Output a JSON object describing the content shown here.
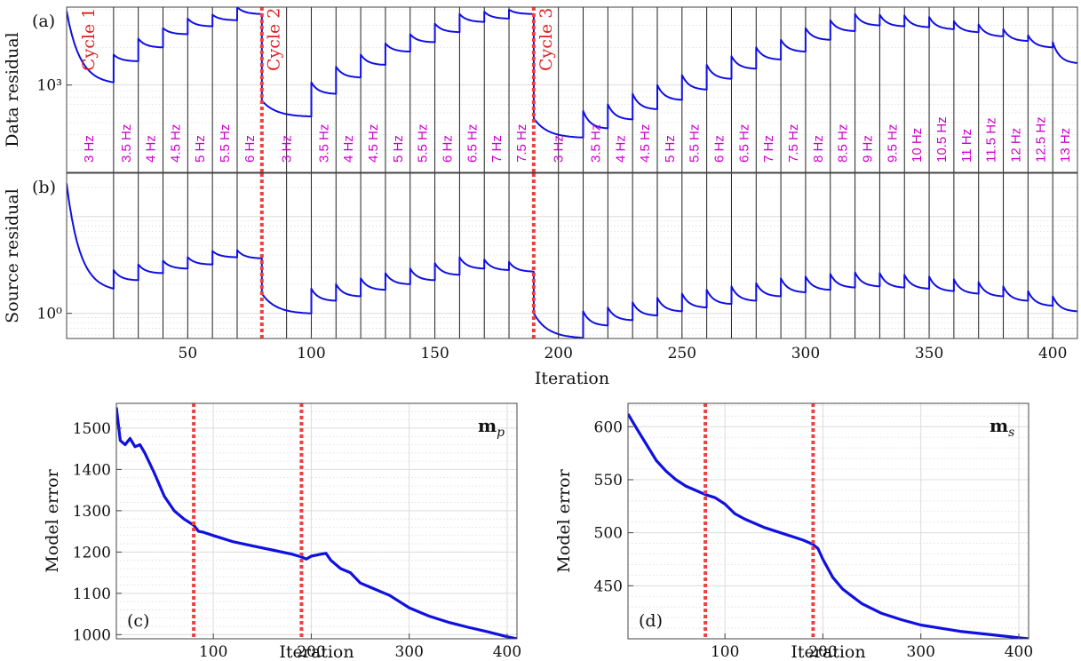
{
  "colors": {
    "line": "#1010e0",
    "cycle_marker": "#f04040",
    "freq_label": "#cc00cc",
    "cycle_label": "#e02020",
    "boundary": "#222222",
    "grid": "#dcdcdc",
    "axis": "#444444"
  },
  "chart_data": [
    {
      "id": "a",
      "panel_label": "(a)",
      "type": "line",
      "ylabel": "Data residual",
      "y_scale": "log",
      "yticks": [
        {
          "value": 1000,
          "label": "10³"
        }
      ],
      "ylim": [
        200,
        4200
      ],
      "xlim": [
        1,
        410
      ],
      "grid": true,
      "boundaries": [
        20,
        30,
        40,
        50,
        60,
        70,
        80,
        90,
        100,
        110,
        120,
        130,
        140,
        150,
        160,
        170,
        180,
        190,
        200,
        210,
        220,
        230,
        240,
        250,
        260,
        270,
        280,
        290,
        300,
        310,
        320,
        330,
        340,
        350,
        360,
        370,
        380,
        390,
        400
      ],
      "cycle_markers": [
        80,
        190
      ],
      "cycle_labels": [
        {
          "text": "Cycle 1",
          "x": 10
        },
        {
          "text": "Cycle 2",
          "x": 85
        },
        {
          "text": "Cycle 3",
          "x": 195
        }
      ],
      "frequency_labels": [
        {
          "text": "3 Hz",
          "x": 10
        },
        {
          "text": "3.5 Hz",
          "x": 25
        },
        {
          "text": "4 Hz",
          "x": 35
        },
        {
          "text": "4.5 Hz",
          "x": 45
        },
        {
          "text": "5 Hz",
          "x": 55
        },
        {
          "text": "5.5 Hz",
          "x": 65
        },
        {
          "text": "6 Hz",
          "x": 75
        },
        {
          "text": "3 Hz",
          "x": 90
        },
        {
          "text": "3.5 Hz",
          "x": 105
        },
        {
          "text": "4 Hz",
          "x": 115
        },
        {
          "text": "4.5 Hz",
          "x": 125
        },
        {
          "text": "5 Hz",
          "x": 135
        },
        {
          "text": "5.5 Hz",
          "x": 145
        },
        {
          "text": "6 Hz",
          "x": 155
        },
        {
          "text": "6.5 Hz",
          "x": 165
        },
        {
          "text": "7 Hz",
          "x": 175
        },
        {
          "text": "7.5 Hz",
          "x": 185
        },
        {
          "text": "3 Hz",
          "x": 200
        },
        {
          "text": "3.5 Hz",
          "x": 215
        },
        {
          "text": "4 Hz",
          "x": 225
        },
        {
          "text": "4.5 Hz",
          "x": 235
        },
        {
          "text": "5 Hz",
          "x": 245
        },
        {
          "text": "5.5 Hz",
          "x": 255
        },
        {
          "text": "6 Hz",
          "x": 265
        },
        {
          "text": "6.5 Hz",
          "x": 275
        },
        {
          "text": "7 Hz",
          "x": 285
        },
        {
          "text": "7.5 Hz",
          "x": 295
        },
        {
          "text": "8 Hz",
          "x": 305
        },
        {
          "text": "8.5 Hz",
          "x": 315
        },
        {
          "text": "9 Hz",
          "x": 325
        },
        {
          "text": "9.5 Hz",
          "x": 335
        },
        {
          "text": "10 Hz",
          "x": 345
        },
        {
          "text": "10.5 Hz",
          "x": 355
        },
        {
          "text": "11 Hz",
          "x": 365
        },
        {
          "text": "11.5 Hz",
          "x": 375
        },
        {
          "text": "12 Hz",
          "x": 385
        },
        {
          "text": "12.5 Hz",
          "x": 395
        },
        {
          "text": "13 Hz",
          "x": 405
        }
      ],
      "segments": [
        {
          "x0": 1,
          "x1": 20,
          "start": 3900,
          "end": 1050
        },
        {
          "x0": 20,
          "x1": 30,
          "start": 1750,
          "end": 1550
        },
        {
          "x0": 30,
          "x1": 40,
          "start": 2350,
          "end": 2000
        },
        {
          "x0": 40,
          "x1": 50,
          "start": 2850,
          "end": 2550
        },
        {
          "x0": 50,
          "x1": 60,
          "start": 3400,
          "end": 2950
        },
        {
          "x0": 60,
          "x1": 70,
          "start": 3650,
          "end": 3300
        },
        {
          "x0": 70,
          "x1": 80,
          "start": 4200,
          "end": 3700
        },
        {
          "x0": 80,
          "x1": 100,
          "start": 750,
          "end": 560
        },
        {
          "x0": 100,
          "x1": 110,
          "start": 1050,
          "end": 850
        },
        {
          "x0": 110,
          "x1": 120,
          "start": 1400,
          "end": 1150
        },
        {
          "x0": 120,
          "x1": 130,
          "start": 1750,
          "end": 1450
        },
        {
          "x0": 130,
          "x1": 140,
          "start": 2150,
          "end": 1850
        },
        {
          "x0": 140,
          "x1": 150,
          "start": 2550,
          "end": 2200
        },
        {
          "x0": 150,
          "x1": 160,
          "start": 3100,
          "end": 2650
        },
        {
          "x0": 160,
          "x1": 170,
          "start": 3700,
          "end": 3200
        },
        {
          "x0": 170,
          "x1": 180,
          "start": 3850,
          "end": 3400
        },
        {
          "x0": 180,
          "x1": 190,
          "start": 4000,
          "end": 3700
        },
        {
          "x0": 190,
          "x1": 210,
          "start": 540,
          "end": 380
        },
        {
          "x0": 210,
          "x1": 220,
          "start": 620,
          "end": 450
        },
        {
          "x0": 220,
          "x1": 230,
          "start": 700,
          "end": 530
        },
        {
          "x0": 230,
          "x1": 240,
          "start": 850,
          "end": 640
        },
        {
          "x0": 240,
          "x1": 250,
          "start": 1000,
          "end": 760
        },
        {
          "x0": 250,
          "x1": 260,
          "start": 1200,
          "end": 920
        },
        {
          "x0": 260,
          "x1": 270,
          "start": 1450,
          "end": 1120
        },
        {
          "x0": 270,
          "x1": 280,
          "start": 1700,
          "end": 1350
        },
        {
          "x0": 280,
          "x1": 290,
          "start": 2000,
          "end": 1600
        },
        {
          "x0": 290,
          "x1": 300,
          "start": 2300,
          "end": 1850
        },
        {
          "x0": 300,
          "x1": 310,
          "start": 2850,
          "end": 2300
        },
        {
          "x0": 310,
          "x1": 320,
          "start": 3300,
          "end": 2700
        },
        {
          "x0": 320,
          "x1": 330,
          "start": 3700,
          "end": 3000
        },
        {
          "x0": 330,
          "x1": 340,
          "start": 3650,
          "end": 2950
        },
        {
          "x0": 340,
          "x1": 350,
          "start": 3600,
          "end": 2900
        },
        {
          "x0": 350,
          "x1": 360,
          "start": 3500,
          "end": 2800
        },
        {
          "x0": 360,
          "x1": 370,
          "start": 3250,
          "end": 2650
        },
        {
          "x0": 370,
          "x1": 380,
          "start": 3050,
          "end": 2450
        },
        {
          "x0": 380,
          "x1": 390,
          "start": 2800,
          "end": 2250
        },
        {
          "x0": 390,
          "x1": 400,
          "start": 2500,
          "end": 2000
        },
        {
          "x0": 400,
          "x1": 410,
          "start": 2200,
          "end": 1500
        }
      ]
    },
    {
      "id": "b",
      "panel_label": "(b)",
      "type": "line",
      "ylabel": "Source residual",
      "xlabel": "Iteration",
      "y_scale": "log",
      "yticks": [
        {
          "value": 1,
          "label": "10⁰"
        }
      ],
      "ylim": [
        0.55,
        28
      ],
      "xlim": [
        1,
        410
      ],
      "xticks": [
        50,
        100,
        150,
        200,
        250,
        300,
        350,
        400
      ],
      "grid": true,
      "boundaries": [
        20,
        30,
        40,
        50,
        60,
        70,
        80,
        90,
        100,
        110,
        120,
        130,
        140,
        150,
        160,
        170,
        180,
        190,
        200,
        210,
        220,
        230,
        240,
        250,
        260,
        270,
        280,
        290,
        300,
        310,
        320,
        330,
        340,
        350,
        360,
        370,
        380,
        390,
        400
      ],
      "cycle_markers": [
        80,
        190
      ],
      "segments": [
        {
          "x0": 1,
          "x1": 20,
          "start": 22,
          "end": 1.8
        },
        {
          "x0": 20,
          "x1": 30,
          "start": 2.8,
          "end": 2.2
        },
        {
          "x0": 30,
          "x1": 40,
          "start": 3.2,
          "end": 2.6
        },
        {
          "x0": 40,
          "x1": 50,
          "start": 3.5,
          "end": 2.9
        },
        {
          "x0": 50,
          "x1": 60,
          "start": 3.8,
          "end": 3.2
        },
        {
          "x0": 60,
          "x1": 70,
          "start": 4.4,
          "end": 3.8
        },
        {
          "x0": 70,
          "x1": 80,
          "start": 4.5,
          "end": 3.7
        },
        {
          "x0": 80,
          "x1": 100,
          "start": 1.6,
          "end": 1.0
        },
        {
          "x0": 100,
          "x1": 110,
          "start": 1.8,
          "end": 1.35
        },
        {
          "x0": 110,
          "x1": 120,
          "start": 2.0,
          "end": 1.5
        },
        {
          "x0": 120,
          "x1": 130,
          "start": 2.3,
          "end": 1.75
        },
        {
          "x0": 130,
          "x1": 140,
          "start": 2.6,
          "end": 2.0
        },
        {
          "x0": 140,
          "x1": 150,
          "start": 2.9,
          "end": 2.2
        },
        {
          "x0": 150,
          "x1": 160,
          "start": 3.3,
          "end": 2.5
        },
        {
          "x0": 160,
          "x1": 170,
          "start": 3.8,
          "end": 2.9
        },
        {
          "x0": 170,
          "x1": 180,
          "start": 3.6,
          "end": 2.8
        },
        {
          "x0": 180,
          "x1": 190,
          "start": 3.4,
          "end": 2.7
        },
        {
          "x0": 190,
          "x1": 210,
          "start": 1.0,
          "end": 0.56
        },
        {
          "x0": 210,
          "x1": 220,
          "start": 1.05,
          "end": 0.75
        },
        {
          "x0": 220,
          "x1": 230,
          "start": 1.15,
          "end": 0.85
        },
        {
          "x0": 230,
          "x1": 240,
          "start": 1.3,
          "end": 0.95
        },
        {
          "x0": 240,
          "x1": 250,
          "start": 1.45,
          "end": 1.05
        },
        {
          "x0": 250,
          "x1": 260,
          "start": 1.6,
          "end": 1.15
        },
        {
          "x0": 260,
          "x1": 270,
          "start": 1.75,
          "end": 1.25
        },
        {
          "x0": 270,
          "x1": 280,
          "start": 1.9,
          "end": 1.35
        },
        {
          "x0": 280,
          "x1": 290,
          "start": 2.05,
          "end": 1.5
        },
        {
          "x0": 290,
          "x1": 300,
          "start": 2.3,
          "end": 1.65
        },
        {
          "x0": 300,
          "x1": 310,
          "start": 2.4,
          "end": 1.75
        },
        {
          "x0": 310,
          "x1": 320,
          "start": 2.55,
          "end": 1.85
        },
        {
          "x0": 320,
          "x1": 330,
          "start": 2.65,
          "end": 1.9
        },
        {
          "x0": 330,
          "x1": 340,
          "start": 2.6,
          "end": 1.85
        },
        {
          "x0": 340,
          "x1": 350,
          "start": 2.5,
          "end": 1.8
        },
        {
          "x0": 350,
          "x1": 360,
          "start": 2.4,
          "end": 1.7
        },
        {
          "x0": 360,
          "x1": 370,
          "start": 2.25,
          "end": 1.6
        },
        {
          "x0": 370,
          "x1": 380,
          "start": 2.1,
          "end": 1.5
        },
        {
          "x0": 380,
          "x1": 390,
          "start": 1.9,
          "end": 1.35
        },
        {
          "x0": 390,
          "x1": 400,
          "start": 1.7,
          "end": 1.2
        },
        {
          "x0": 400,
          "x1": 410,
          "start": 1.5,
          "end": 1.05
        }
      ]
    },
    {
      "id": "c",
      "panel_label": "(c)",
      "type": "line",
      "ylabel": "Model error",
      "xlabel": "Iteration",
      "legend_text": "m",
      "legend_sub": "p",
      "xlim": [
        1,
        410
      ],
      "ylim": [
        990,
        1560
      ],
      "xticks": [
        100,
        200,
        300,
        400
      ],
      "yticks": [
        1000,
        1100,
        1200,
        1300,
        1400,
        1500
      ],
      "grid": true,
      "cycle_markers": [
        80,
        190
      ],
      "series": [
        {
          "x": [
            1,
            5,
            10,
            15,
            20,
            25,
            30,
            40,
            50,
            60,
            70,
            80,
            85,
            90,
            100,
            120,
            140,
            160,
            180,
            190,
            195,
            200,
            210,
            215,
            220,
            230,
            240,
            250,
            260,
            280,
            300,
            320,
            340,
            360,
            380,
            400,
            410
          ],
          "y": [
            1550,
            1470,
            1460,
            1475,
            1455,
            1460,
            1440,
            1390,
            1335,
            1300,
            1280,
            1265,
            1250,
            1248,
            1240,
            1225,
            1215,
            1205,
            1195,
            1188,
            1183,
            1190,
            1195,
            1197,
            1180,
            1160,
            1150,
            1125,
            1115,
            1095,
            1065,
            1045,
            1030,
            1018,
            1007,
            995,
            990
          ]
        }
      ]
    },
    {
      "id": "d",
      "panel_label": "(d)",
      "type": "line",
      "ylabel": "Model error",
      "xlabel": "Iteration",
      "legend_text": "m",
      "legend_sub": "s",
      "xlim": [
        1,
        410
      ],
      "ylim": [
        400,
        622
      ],
      "xticks": [
        100,
        200,
        300,
        400
      ],
      "yticks": [
        450,
        500,
        550,
        600
      ],
      "grid": true,
      "cycle_markers": [
        80,
        190
      ],
      "series": [
        {
          "x": [
            1,
            10,
            20,
            30,
            40,
            50,
            60,
            70,
            80,
            90,
            100,
            110,
            120,
            140,
            160,
            180,
            190,
            195,
            200,
            210,
            220,
            230,
            240,
            260,
            280,
            300,
            320,
            340,
            360,
            380,
            400,
            410
          ],
          "y": [
            612,
            598,
            583,
            568,
            558,
            550,
            544,
            540,
            536,
            533,
            527,
            518,
            513,
            505,
            499,
            493,
            489,
            485,
            475,
            458,
            447,
            440,
            433,
            424,
            418,
            413,
            410,
            407,
            405,
            403,
            401,
            400
          ]
        }
      ]
    }
  ]
}
